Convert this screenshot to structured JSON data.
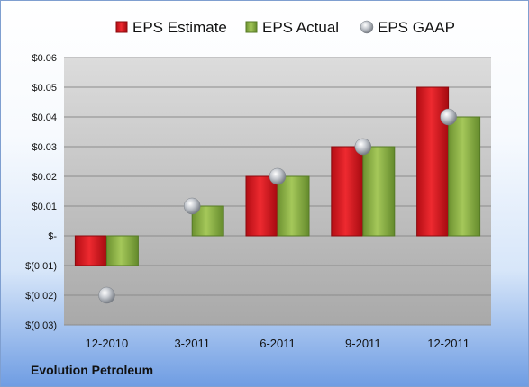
{
  "chart_data": {
    "type": "bar",
    "categories": [
      "12-2010",
      "3-2011",
      "6-2011",
      "9-2011",
      "12-2011"
    ],
    "series": [
      {
        "name": "EPS Estimate",
        "values": [
          -0.01,
          null,
          0.02,
          0.03,
          0.05
        ],
        "color": "#d8141c"
      },
      {
        "name": "EPS Actual",
        "values": [
          -0.01,
          0.01,
          0.02,
          0.03,
          0.04
        ],
        "color": "#8cb040"
      },
      {
        "name": "EPS GAAP",
        "values": [
          -0.02,
          0.01,
          0.02,
          0.03,
          0.04
        ],
        "color": "#b8bcc4",
        "marker": "sphere"
      }
    ],
    "ylim": [
      -0.03,
      0.06
    ],
    "yticks": [
      {
        "value": 0.06,
        "label": "$0.06"
      },
      {
        "value": 0.05,
        "label": "$0.05"
      },
      {
        "value": 0.04,
        "label": "$0.04"
      },
      {
        "value": 0.03,
        "label": "$0.03"
      },
      {
        "value": 0.02,
        "label": "$0.02"
      },
      {
        "value": 0.01,
        "label": "$0.01"
      },
      {
        "value": 0,
        "label": "$-"
      },
      {
        "value": -0.01,
        "label": "$(0.01)"
      },
      {
        "value": -0.02,
        "label": "$(0.02)"
      },
      {
        "value": -0.03,
        "label": "$(0.03)"
      }
    ],
    "legend_position": "top",
    "grid": true
  },
  "footer": {
    "company": "Evolution Petroleum"
  }
}
